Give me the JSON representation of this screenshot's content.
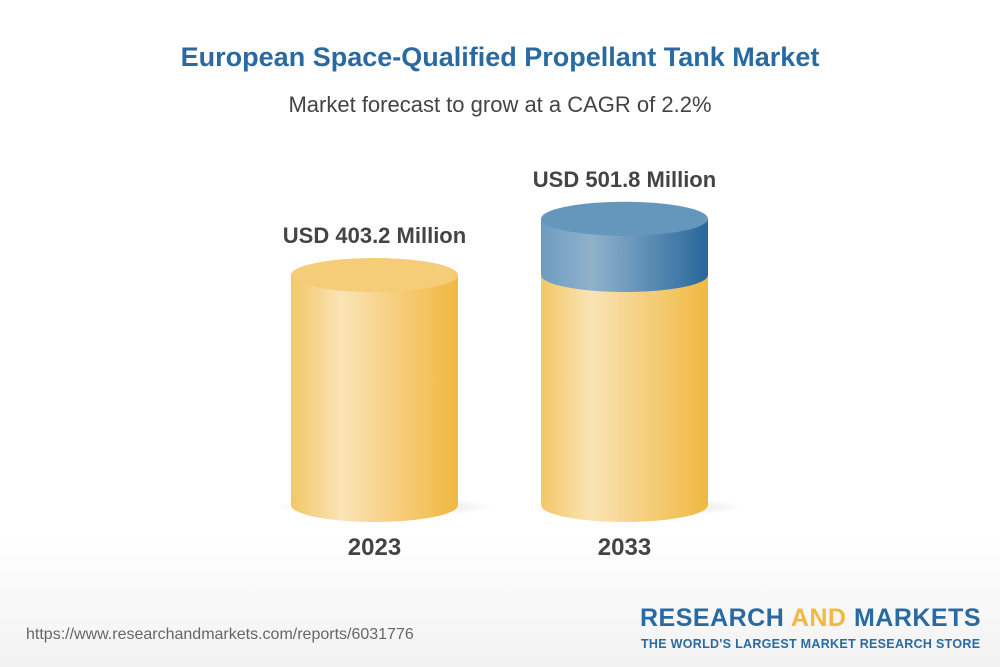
{
  "chart_data": {
    "type": "bar",
    "title": "European Space-Qualified Propellant Tank Market",
    "subtitle": "Market forecast to grow at a CAGR of 2.2%",
    "categories": [
      "2023",
      "2033"
    ],
    "values": [
      403.2,
      501.8
    ],
    "data_labels": [
      "USD 403.2 Million",
      "USD 501.8 Million"
    ],
    "unit": "USD Million",
    "colors": {
      "base": "#f2c050",
      "growth": "#2a6aa0"
    }
  },
  "footer": {
    "url": "https://www.researchandmarkets.com/reports/6031776",
    "logo_a": "RESEARCH ",
    "logo_b": "AND",
    "logo_c": " MARKETS",
    "tagline": "THE WORLD'S LARGEST MARKET RESEARCH STORE"
  }
}
